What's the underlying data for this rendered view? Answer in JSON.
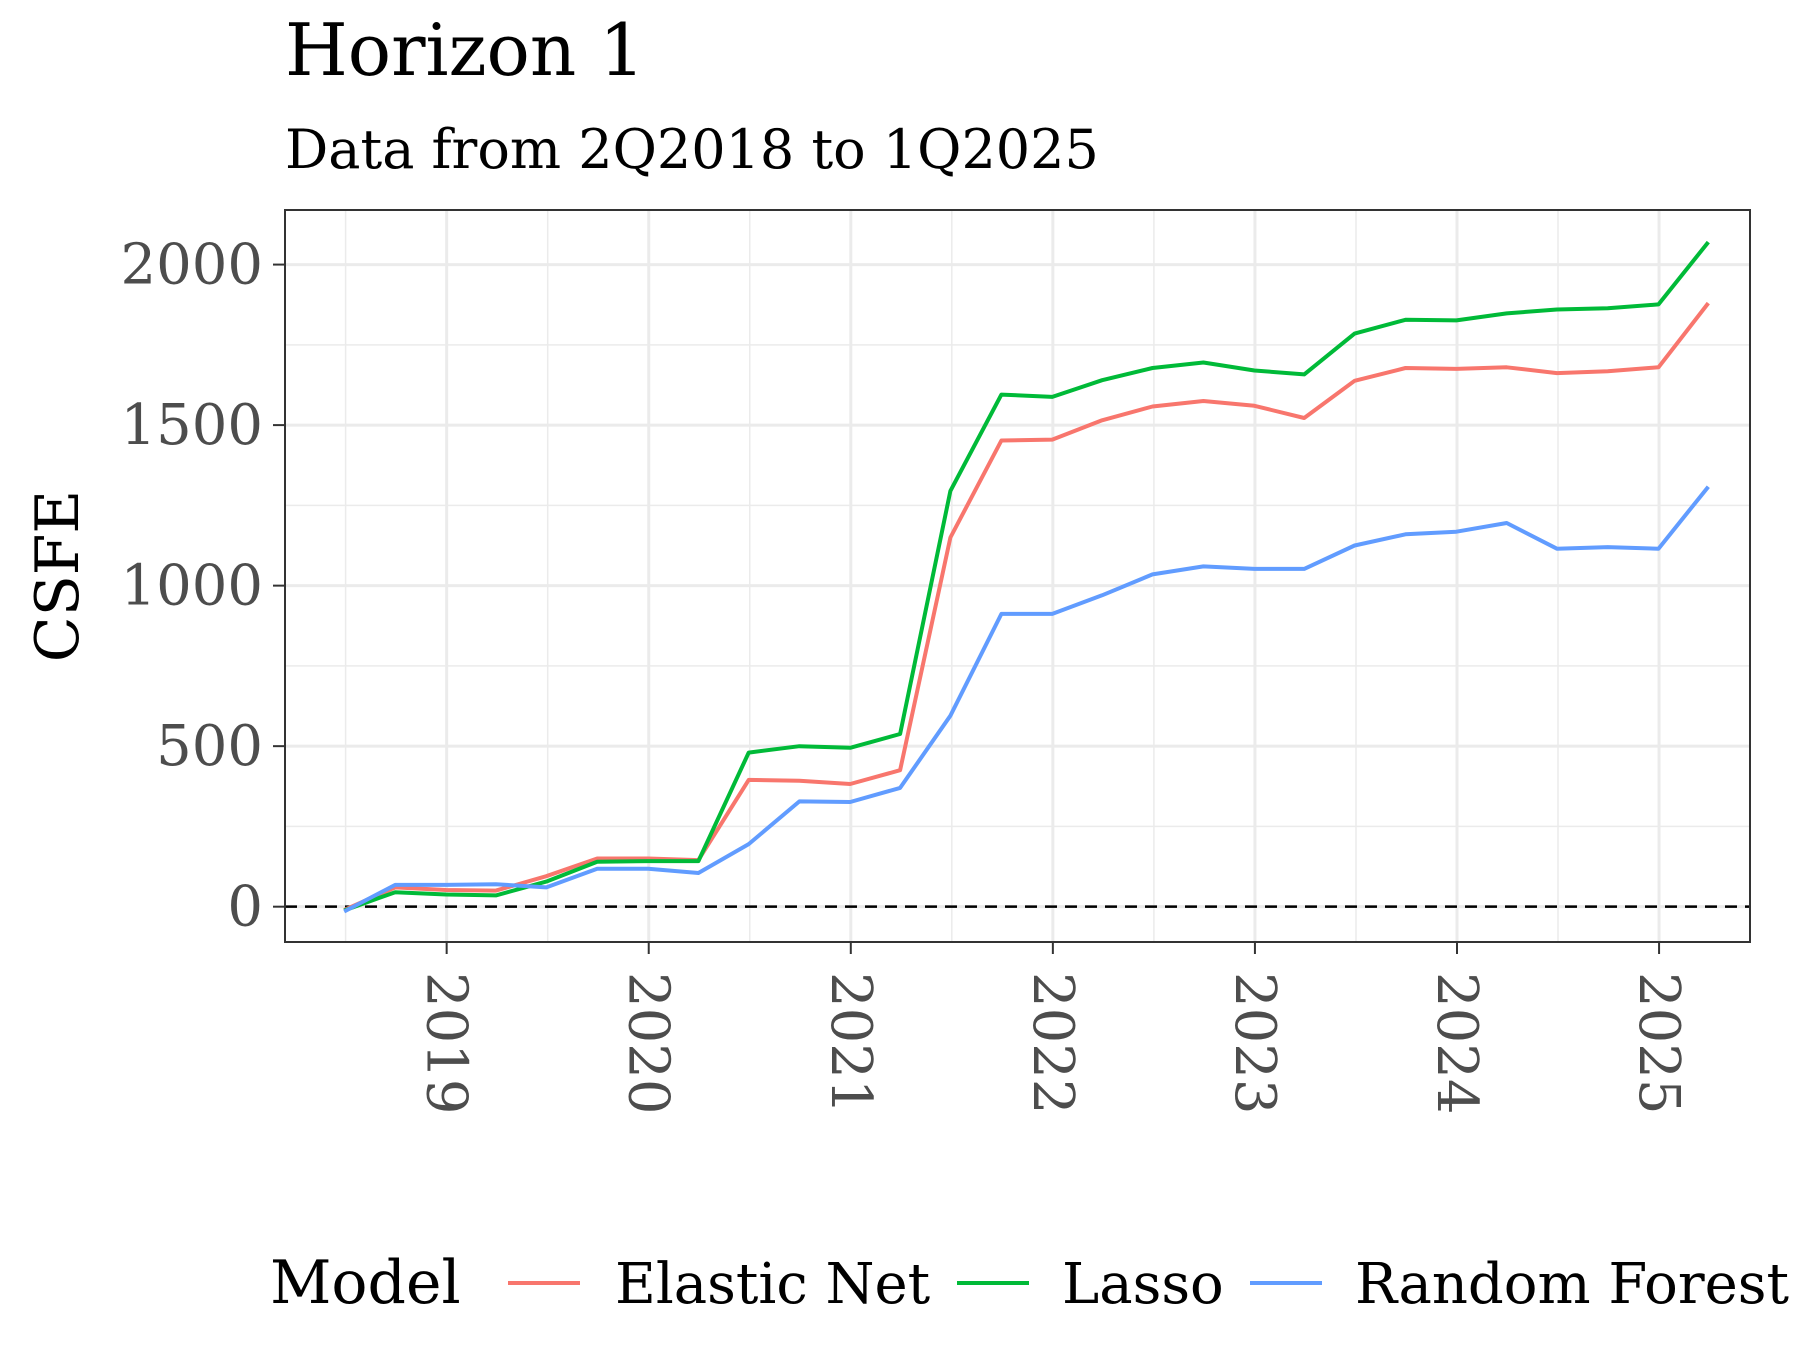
{
  "chart_data": {
    "type": "line",
    "title": "Horizon 1",
    "subtitle": "Data from 2Q2018 to 1Q2025",
    "ylabel": "CSFE",
    "xlabel": "",
    "xlim": [
      2018.2,
      2025.45
    ],
    "ylim": [
      -110,
      2170
    ],
    "yticks": [
      0,
      500,
      1000,
      1500,
      2000
    ],
    "xticks": [
      "2019",
      "2020",
      "2021",
      "2022",
      "2023",
      "2024",
      "2025"
    ],
    "grid": true,
    "reference_line": 0,
    "legend_title": "Model",
    "legend_position": "bottom",
    "x": [
      "2018-06-30",
      "2018-09-30",
      "2018-12-31",
      "2019-03-31",
      "2019-06-30",
      "2019-09-30",
      "2019-12-31",
      "2020-03-31",
      "2020-06-30",
      "2020-09-30",
      "2020-12-31",
      "2021-03-31",
      "2021-06-30",
      "2021-09-30",
      "2021-12-31",
      "2022-03-31",
      "2022-06-30",
      "2022-09-30",
      "2022-12-31",
      "2023-03-31",
      "2023-06-30",
      "2023-09-30",
      "2023-12-31",
      "2024-03-31",
      "2024-06-30",
      "2024-09-30",
      "2024-12-31",
      "2025-03-31"
    ],
    "series": [
      {
        "name": "Elastic Net",
        "color": "#F8766D",
        "values": [
          -10,
          60,
          52,
          50,
          95,
          150,
          150,
          145,
          395,
          392,
          382,
          425,
          1150,
          1452,
          1455,
          1515,
          1558,
          1575,
          1560,
          1522,
          1638,
          1678,
          1675,
          1680,
          1662,
          1668,
          1680,
          1880
        ]
      },
      {
        "name": "Lasso",
        "color": "#00BA38",
        "values": [
          -12,
          45,
          38,
          35,
          78,
          140,
          142,
          142,
          480,
          500,
          495,
          538,
          1295,
          1595,
          1588,
          1640,
          1678,
          1695,
          1670,
          1658,
          1785,
          1828,
          1826,
          1848,
          1860,
          1864,
          1876,
          2070
        ]
      },
      {
        "name": "Random Forest",
        "color": "#619CFF",
        "values": [
          -15,
          68,
          68,
          70,
          60,
          118,
          118,
          105,
          195,
          328,
          326,
          370,
          595,
          912,
          912,
          970,
          1035,
          1060,
          1052,
          1052,
          1125,
          1160,
          1168,
          1195,
          1115,
          1120,
          1115,
          1308
        ]
      }
    ]
  }
}
